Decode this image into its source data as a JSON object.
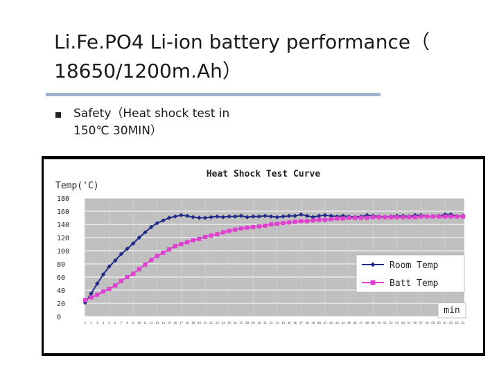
{
  "slide": {
    "title_line1": "Li.Fe.PO4 Li-ion battery performance（",
    "title_line2": "18650/1200m.Ah）",
    "bullet_line1": "Safety（Heat shock test in",
    "bullet_line2": "150℃ 30MIN）"
  },
  "colors": {
    "room_series": "#1f2a86",
    "batt_series": "#e040d0",
    "plot_background": "#c0c0c0",
    "chart_background": "#ffffff",
    "frame": "#000000"
  },
  "chart_data": {
    "type": "line",
    "title": "Heat Shock Test Curve",
    "ylabel": "Temp('C)",
    "xlabel": "min",
    "ylim": [
      0,
      180
    ],
    "yticks": [
      0,
      20,
      40,
      60,
      80,
      100,
      120,
      140,
      160,
      180
    ],
    "grid": true,
    "legend_position": "right",
    "x": [
      1,
      2,
      3,
      4,
      5,
      6,
      7,
      8,
      9,
      10,
      11,
      12,
      13,
      14,
      15,
      16,
      17,
      18,
      19,
      20,
      21,
      22,
      23,
      24,
      25,
      26,
      27,
      28,
      29,
      30,
      31,
      32,
      33,
      34,
      35,
      36,
      37,
      38,
      39,
      40,
      41,
      42,
      43,
      44,
      45,
      46,
      47,
      48,
      49,
      50,
      51,
      52,
      53,
      54,
      55,
      56,
      57,
      58,
      59,
      60,
      61,
      62,
      63,
      64
    ],
    "series": [
      {
        "name": "Room Temp",
        "values": [
          21,
          35,
          50,
          64,
          76,
          85,
          95,
          103,
          111,
          120,
          128,
          136,
          142,
          146,
          150,
          152,
          154,
          153,
          151,
          150,
          150,
          151,
          152,
          151,
          152,
          152,
          153,
          151,
          152,
          152,
          153,
          152,
          151,
          152,
          153,
          153,
          155,
          153,
          151,
          153,
          154,
          153,
          152,
          153,
          152,
          151,
          152,
          154,
          153,
          152,
          151,
          152,
          153,
          153,
          152,
          154,
          154,
          152,
          152,
          153,
          155,
          155,
          152,
          153
        ]
      },
      {
        "name": "Batt Temp",
        "values": [
          25,
          29,
          33,
          38,
          42,
          47,
          54,
          60,
          65,
          72,
          79,
          86,
          92,
          97,
          102,
          107,
          110,
          113,
          116,
          118,
          121,
          123,
          125,
          128,
          130,
          132,
          134,
          135,
          136,
          137,
          138,
          140,
          141,
          142,
          143,
          144,
          145,
          145,
          146,
          147,
          147,
          148,
          149,
          149,
          150,
          150,
          150,
          150,
          151,
          151,
          151,
          151,
          151,
          151,
          151,
          151,
          152,
          152,
          152,
          152,
          152,
          152,
          152,
          152
        ]
      }
    ]
  }
}
